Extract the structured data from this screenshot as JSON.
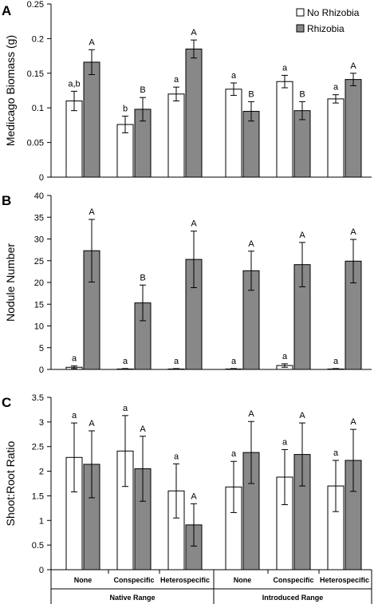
{
  "legend": [
    {
      "label": "No Rhizobia",
      "color": "#ffffff"
    },
    {
      "label": "Rhizobia",
      "color": "#888888"
    }
  ],
  "groups": [
    {
      "label": "Native Range"
    },
    {
      "label": "Introduced Range"
    }
  ],
  "categories": [
    "None",
    "Conspecific",
    "Heterospecific",
    "None",
    "Conspecific",
    "Heterospecific"
  ],
  "chart_data": [
    {
      "type": "bar",
      "panel": "A",
      "ylabel": "Medicago Biomass (g)",
      "ylim": [
        0,
        0.25
      ],
      "ticks": [
        "0",
        "0.05",
        "0.1",
        "0.15",
        "0.2",
        "0.25"
      ],
      "tick_values": [
        0,
        0.05,
        0.1,
        0.15,
        0.2,
        0.25
      ],
      "series": [
        {
          "name": "No Rhizobia",
          "values": [
            0.11,
            0.076,
            0.12,
            0.127,
            0.138,
            0.113
          ],
          "errors": [
            0.014,
            0.012,
            0.01,
            0.009,
            0.009,
            0.006
          ],
          "letters": [
            "a,b",
            "b",
            "a",
            "a",
            "a",
            "a"
          ]
        },
        {
          "name": "Rhizobia",
          "values": [
            0.166,
            0.098,
            0.185,
            0.095,
            0.096,
            0.141
          ],
          "errors": [
            0.018,
            0.017,
            0.013,
            0.014,
            0.013,
            0.009
          ],
          "letters": [
            "A",
            "B",
            "A",
            "B",
            "B",
            "A"
          ]
        }
      ]
    },
    {
      "type": "bar",
      "panel": "B",
      "ylabel": "Nodule Number",
      "ylim": [
        0,
        40
      ],
      "ticks": [
        "0",
        "5",
        "10",
        "15",
        "20",
        "25",
        "30",
        "35",
        "40"
      ],
      "tick_values": [
        0,
        5,
        10,
        15,
        20,
        25,
        30,
        35,
        40
      ],
      "series": [
        {
          "name": "No Rhizobia",
          "values": [
            0.5,
            0.1,
            0.1,
            0.1,
            0.9,
            0.1
          ],
          "errors": [
            0.3,
            0.1,
            0.1,
            0.1,
            0.4,
            0.1
          ],
          "letters": [
            "a",
            "a",
            "a",
            "a",
            "a",
            "a"
          ]
        },
        {
          "name": "Rhizobia",
          "values": [
            27.3,
            15.3,
            25.3,
            22.7,
            24.1,
            24.9
          ],
          "errors": [
            7.2,
            4.1,
            6.5,
            4.5,
            5.1,
            5.0
          ],
          "letters": [
            "A",
            "B",
            "A",
            "A",
            "A",
            "A"
          ]
        }
      ]
    },
    {
      "type": "bar",
      "panel": "C",
      "ylabel": "Shoot:Root Ratio",
      "ylim": [
        0,
        3.5
      ],
      "ticks": [
        "0",
        "0.5",
        "1",
        "1.5",
        "2",
        "2.5",
        "3",
        "3.5"
      ],
      "tick_values": [
        0,
        0.5,
        1,
        1.5,
        2,
        2.5,
        3,
        3.5
      ],
      "series": [
        {
          "name": "No Rhizobia",
          "values": [
            2.28,
            2.41,
            1.6,
            1.68,
            1.88,
            1.7
          ],
          "errors": [
            0.7,
            0.72,
            0.55,
            0.52,
            0.56,
            0.52
          ],
          "letters": [
            "a",
            "a",
            "a",
            "a",
            "a",
            "a"
          ]
        },
        {
          "name": "Rhizobia",
          "values": [
            2.14,
            2.05,
            0.91,
            2.38,
            2.34,
            2.22
          ],
          "errors": [
            0.68,
            0.66,
            0.43,
            0.63,
            0.64,
            0.63
          ],
          "letters": [
            "A",
            "A",
            "A",
            "A",
            "A",
            "A"
          ]
        }
      ]
    }
  ]
}
